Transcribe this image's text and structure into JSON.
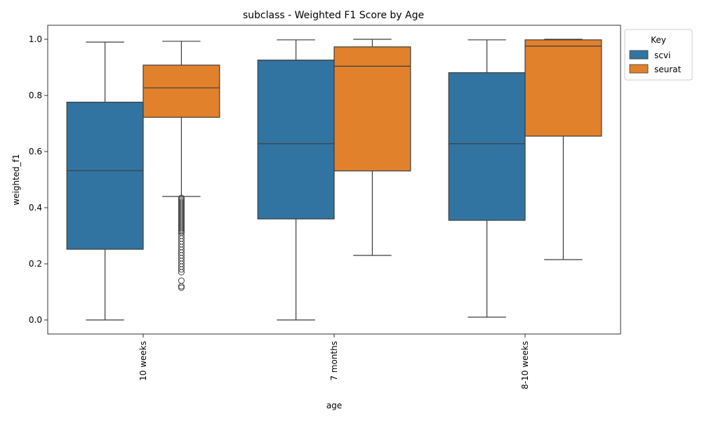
{
  "chart_data": {
    "type": "box",
    "title": "subclass - Weighted F1 Score by Age",
    "xlabel": "age",
    "ylabel": "weighted_f1",
    "categories": [
      "10 weeks",
      "7 months",
      "8-10 weeks"
    ],
    "ylim": [
      -0.05,
      1.05
    ],
    "yticks": [
      0.0,
      0.2,
      0.4,
      0.6,
      0.8,
      1.0
    ],
    "ytick_labels": [
      "0.0",
      "0.2",
      "0.4",
      "0.6",
      "0.8",
      "1.0"
    ],
    "grid": false,
    "legend": {
      "title": "Key",
      "placement": "outside-top-right"
    },
    "series": [
      {
        "name": "scvi",
        "color": "#3274a1",
        "boxes": [
          {
            "min": 0.0,
            "q1": 0.252,
            "median": 0.532,
            "q3": 0.776,
            "max": 0.99,
            "outliers": []
          },
          {
            "min": 0.0,
            "q1": 0.36,
            "median": 0.628,
            "q3": 0.926,
            "max": 0.998,
            "outliers": []
          },
          {
            "min": 0.01,
            "q1": 0.355,
            "median": 0.628,
            "q3": 0.881,
            "max": 0.998,
            "outliers": []
          }
        ]
      },
      {
        "name": "seurat",
        "color": "#e1812c",
        "boxes": [
          {
            "min": 0.44,
            "q1": 0.722,
            "median": 0.827,
            "q3": 0.908,
            "max": 0.993,
            "outliers": [
              0.435,
              0.43,
              0.425,
              0.42,
              0.415,
              0.41,
              0.405,
              0.4,
              0.395,
              0.39,
              0.385,
              0.38,
              0.375,
              0.37,
              0.365,
              0.36,
              0.355,
              0.35,
              0.345,
              0.34,
              0.335,
              0.33,
              0.325,
              0.32,
              0.315,
              0.31,
              0.3,
              0.29,
              0.28,
              0.27,
              0.26,
              0.25,
              0.24,
              0.23,
              0.22,
              0.21,
              0.2,
              0.19,
              0.18,
              0.17,
              0.14,
              0.12,
              0.115
            ]
          },
          {
            "min": 0.23,
            "q1": 0.531,
            "median": 0.904,
            "q3": 0.973,
            "max": 1.0,
            "outliers": []
          },
          {
            "min": 0.215,
            "q1": 0.655,
            "median": 0.976,
            "q3": 0.998,
            "max": 1.0,
            "outliers": []
          }
        ]
      }
    ]
  }
}
